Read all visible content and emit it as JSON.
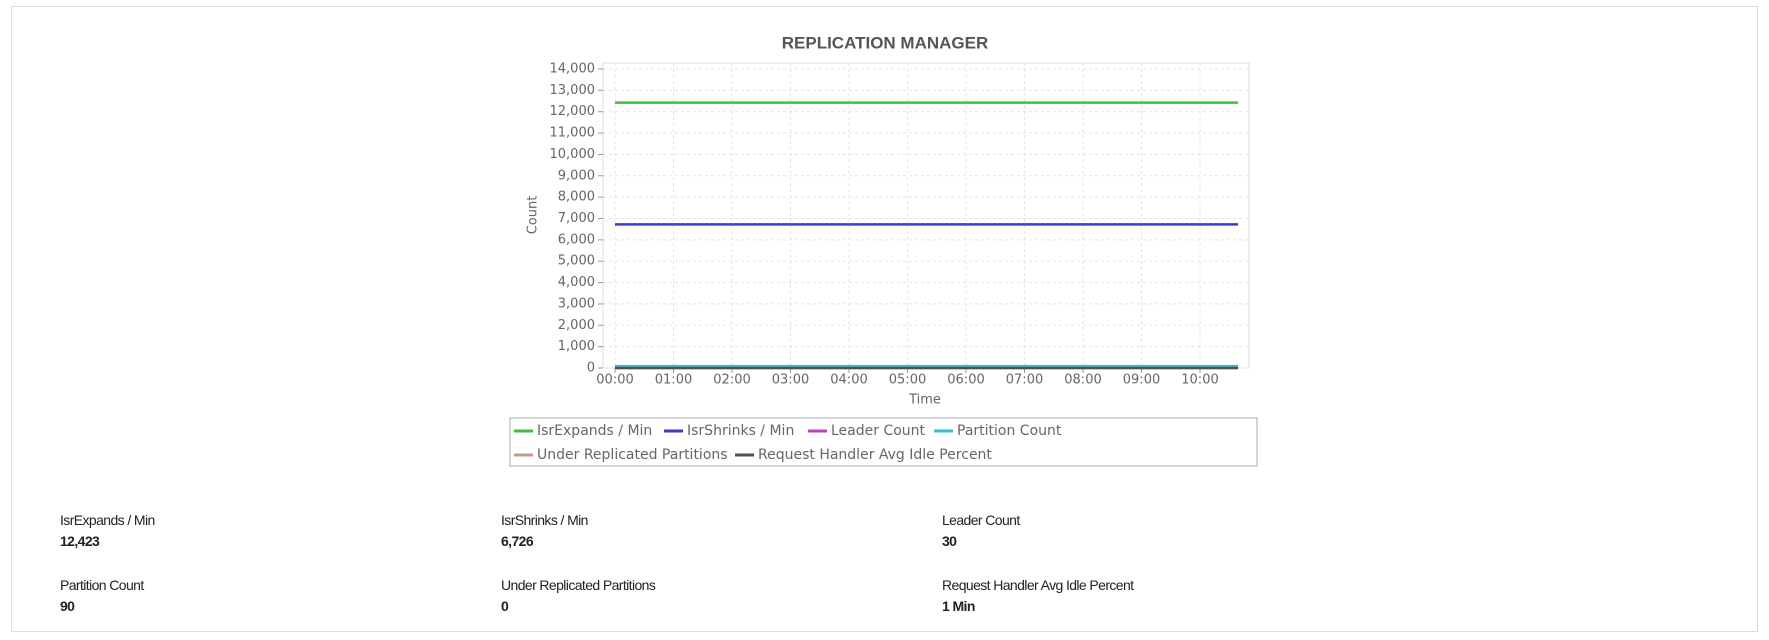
{
  "chart_data": {
    "type": "line",
    "title": "REPLICATION MANAGER",
    "x_label": "Time",
    "y_label": "Count",
    "xlim": [
      0,
      10.65
    ],
    "ylim": [
      0,
      14000
    ],
    "grid": true,
    "legend": "bottom",
    "xticks": [
      {
        "value": 0,
        "label": "00:00"
      },
      {
        "value": 1,
        "label": "01:00"
      },
      {
        "value": 2,
        "label": "02:00"
      },
      {
        "value": 3,
        "label": "03:00"
      },
      {
        "value": 4,
        "label": "04:00"
      },
      {
        "value": 5,
        "label": "05:00"
      },
      {
        "value": 6,
        "label": "06:00"
      },
      {
        "value": 7,
        "label": "07:00"
      },
      {
        "value": 8,
        "label": "08:00"
      },
      {
        "value": 9,
        "label": "09:00"
      },
      {
        "value": 10,
        "label": "10:00"
      }
    ],
    "yticks": [
      0,
      {
        "value": 1000,
        "label": "1,000"
      },
      {
        "value": 2000,
        "label": "2,000"
      },
      {
        "value": 3000,
        "label": "3,000"
      },
      {
        "value": 4000,
        "label": "4,000"
      },
      {
        "value": 5000,
        "label": "5,000"
      },
      {
        "value": 6000,
        "label": "6,000"
      },
      {
        "value": 7000,
        "label": "7,000"
      },
      {
        "value": 8000,
        "label": "8,000"
      },
      {
        "value": 9000,
        "label": "9,000"
      },
      {
        "value": 10000,
        "label": "10,000"
      },
      {
        "value": 11000,
        "label": "11,000"
      },
      {
        "value": 12000,
        "label": "12,000"
      },
      {
        "value": 13000,
        "label": "13,000"
      },
      {
        "value": 14000,
        "label": "14,000"
      }
    ],
    "x": [
      0,
      10.65
    ],
    "series": [
      {
        "name": "IsrExpands / Min",
        "color": "#3cc03c",
        "values": [
          12423,
          12423
        ]
      },
      {
        "name": "IsrShrinks / Min",
        "color": "#3b3bc4",
        "values": [
          6726,
          6726
        ]
      },
      {
        "name": "Leader Count",
        "color": "#c23fc2",
        "values": [
          30,
          30
        ]
      },
      {
        "name": "Partition Count",
        "color": "#33c2d2",
        "values": [
          90,
          90
        ]
      },
      {
        "name": "Under Replicated Partitions",
        "color": "#c09a90",
        "values": [
          0,
          0
        ]
      },
      {
        "name": "Request Handler Avg Idle Percent",
        "color": "#505050",
        "values": [
          1,
          1
        ]
      }
    ]
  },
  "stats": [
    {
      "label": "IsrExpands / Min",
      "value": "12,423"
    },
    {
      "label": "IsrShrinks / Min",
      "value": "6,726"
    },
    {
      "label": "Leader Count",
      "value": "30"
    },
    {
      "label": "Partition Count",
      "value": "90"
    },
    {
      "label": "Under Replicated Partitions",
      "value": "0"
    },
    {
      "label": "Request Handler Avg Idle Percent",
      "value": "1 Min"
    }
  ]
}
